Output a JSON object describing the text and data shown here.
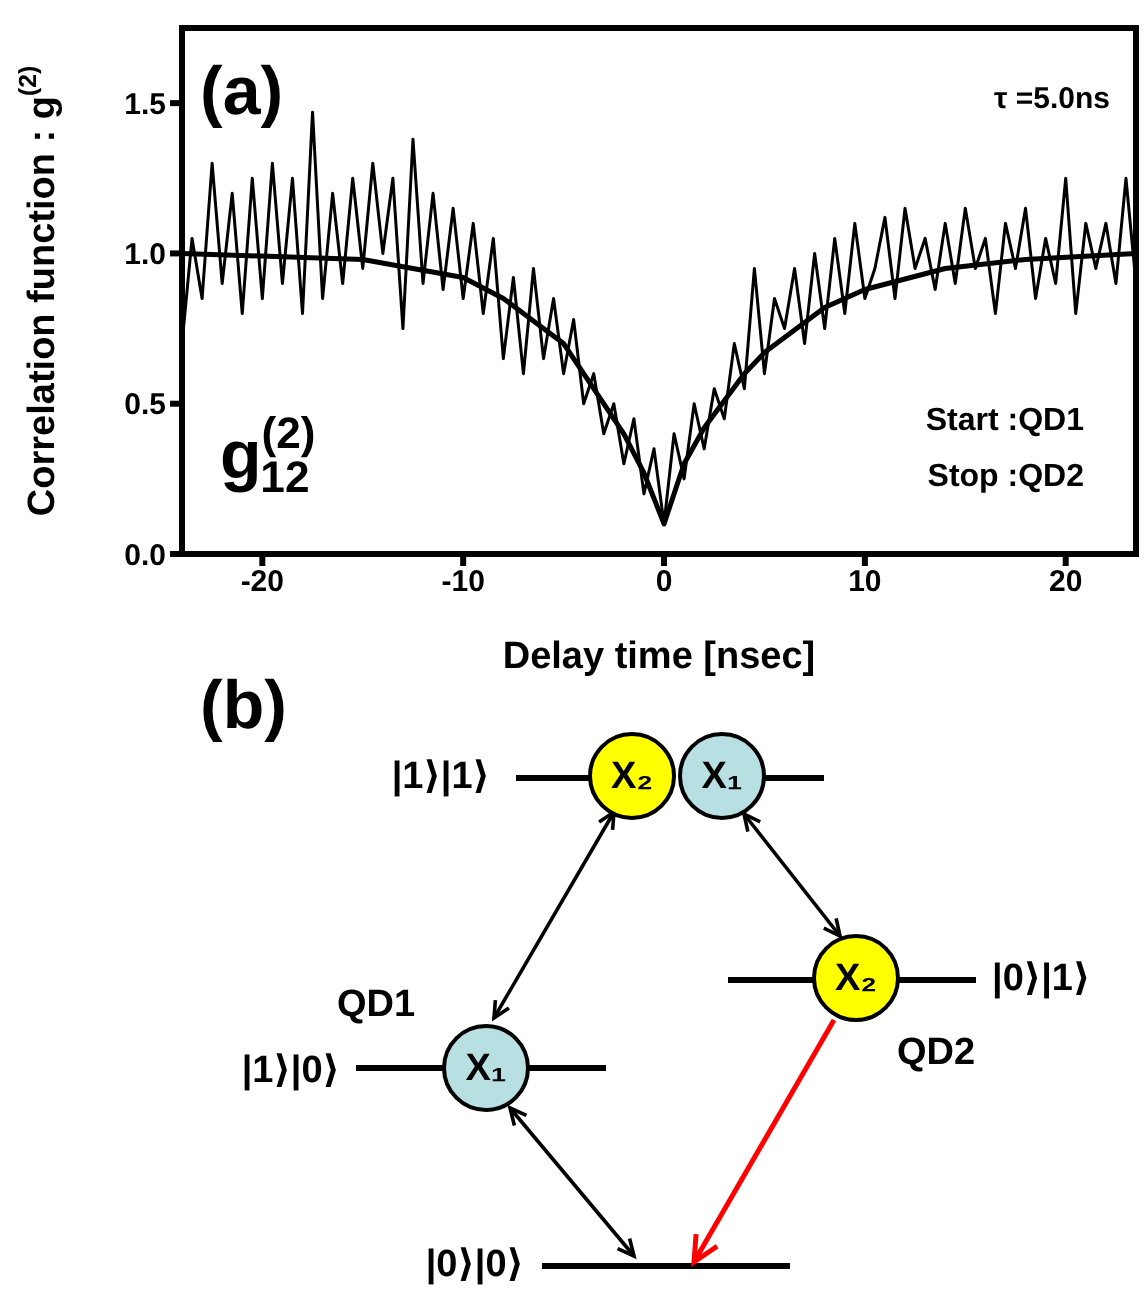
{
  "chart_data": {
    "type": "line",
    "xlabel": "Delay time [nsec]",
    "ylabel": "Correlation function : g$^{(2)}$",
    "xlim": [
      -24,
      23.5
    ],
    "ylim": [
      0,
      1.75
    ],
    "xticks": [
      -20,
      -10,
      0,
      10,
      20
    ],
    "yticks": [
      {
        "value": 0,
        "label": "0.0"
      },
      {
        "value": 0.5,
        "label": "0.5"
      },
      {
        "value": 1,
        "label": "1.0"
      },
      {
        "value": 1.5,
        "label": "1.5"
      }
    ],
    "marker": "none",
    "line_style": "solid",
    "series": [
      {
        "color": "#000000",
        "x": [
          -24,
          -23.5,
          -23,
          -22.5,
          -22,
          -21.5,
          -21,
          -20.5,
          -20,
          -19.5,
          -19,
          -18.5,
          -18,
          -17.5,
          -17,
          -16.5,
          -16,
          -15.5,
          -15,
          -14.5,
          -14,
          -13.5,
          -13,
          -12.5,
          -12,
          -11.5,
          -11,
          -10.5,
          -10,
          -9.5,
          -9,
          -8.5,
          -8,
          -7.5,
          -7,
          -6.5,
          -6,
          -5.5,
          -5,
          -4.5,
          -4,
          -3.5,
          -3,
          -2.5,
          -2,
          -1.5,
          -1,
          -0.5,
          0,
          0.5,
          1,
          1.5,
          2,
          2.5,
          3,
          3.5,
          4,
          4.5,
          5,
          5.5,
          6,
          6.5,
          7,
          7.5,
          8,
          8.5,
          9,
          9.5,
          10,
          10.5,
          11,
          11.5,
          12,
          12.5,
          13,
          13.5,
          14,
          14.5,
          15,
          15.5,
          16,
          16.5,
          17,
          17.5,
          18,
          18.5,
          19,
          19.5,
          20,
          20.5,
          21,
          21.5,
          22,
          22.5,
          23,
          23.5
        ],
        "values": [
          0.7,
          1.05,
          0.85,
          1.3,
          0.9,
          1.2,
          0.8,
          1.25,
          0.85,
          1.3,
          0.9,
          1.25,
          0.8,
          1.47,
          0.85,
          1.2,
          0.9,
          1.25,
          0.95,
          1.3,
          1.0,
          1.25,
          0.75,
          1.38,
          0.9,
          1.2,
          0.88,
          1.15,
          0.85,
          1.1,
          0.8,
          1.05,
          0.65,
          0.92,
          0.6,
          0.95,
          0.65,
          0.85,
          0.6,
          0.78,
          0.5,
          0.6,
          0.4,
          0.5,
          0.3,
          0.45,
          0.2,
          0.35,
          0.1,
          0.4,
          0.25,
          0.5,
          0.35,
          0.55,
          0.45,
          0.7,
          0.55,
          0.95,
          0.6,
          0.85,
          0.75,
          0.95,
          0.7,
          1.0,
          0.75,
          1.05,
          0.8,
          1.1,
          0.85,
          0.95,
          1.12,
          0.85,
          1.15,
          0.95,
          1.05,
          0.88,
          1.1,
          0.9,
          1.15,
          0.95,
          1.05,
          0.8,
          1.1,
          0.95,
          1.15,
          0.85,
          1.05,
          0.9,
          1.25,
          0.8,
          1.1,
          0.95,
          1.1,
          0.9,
          1.25,
          0.9
        ]
      },
      {
        "color": "#000000",
        "x": [
          -24,
          -15,
          -10,
          -8,
          -6,
          -5,
          -4,
          -2,
          -1,
          0,
          1,
          2,
          4,
          5,
          6,
          8,
          10,
          14,
          18,
          23.5
        ],
        "values": [
          1.0,
          0.98,
          0.92,
          0.85,
          0.75,
          0.7,
          0.6,
          0.4,
          0.27,
          0.1,
          0.3,
          0.42,
          0.6,
          0.67,
          0.72,
          0.82,
          0.88,
          0.95,
          0.98,
          1.0
        ]
      }
    ],
    "annotations": [
      "(a)",
      "τ =5.0ns",
      "g$^{(2)}$$_{12}$",
      "Start :QD1",
      "Stop :QD2",
      "(b)",
      "|1⟩|1⟩",
      "|1⟩|0⟩",
      "|0⟩|1⟩",
      "|0⟩|0⟩",
      "QD1",
      "QD2",
      "X₂",
      "X₁",
      "X₁",
      "X₂"
    ]
  }
}
